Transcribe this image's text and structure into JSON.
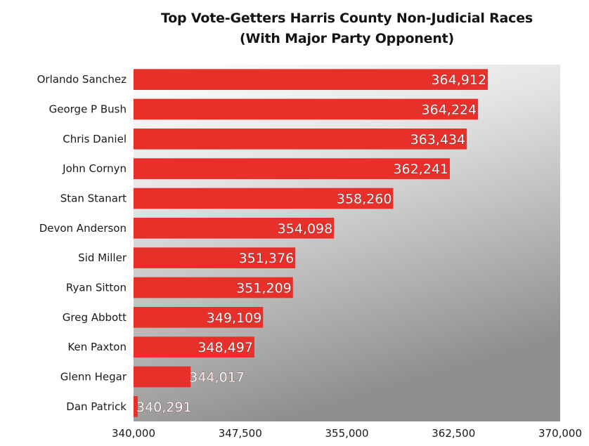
{
  "chart_data": {
    "type": "bar",
    "orientation": "horizontal",
    "title": "Top Vote-Getters Harris County Non-Judicial Races",
    "subtitle": "(With Major Party Opponent)",
    "xlabel": "",
    "ylabel": "",
    "xlim": [
      340000,
      370000
    ],
    "xticks": [
      340000,
      347500,
      355000,
      362500,
      370000
    ],
    "xtick_labels": [
      "340,000",
      "347,500",
      "355,000",
      "362,500",
      "370,000"
    ],
    "grid": false,
    "legend": "none",
    "categories": [
      "Orlando Sanchez",
      "George P Bush",
      "Chris Daniel",
      "John Cornyn",
      "Stan Stanart",
      "Devon Anderson",
      "Sid Miller",
      "Ryan Sitton",
      "Greg Abbott",
      "Ken Paxton",
      "Glenn Hegar",
      "Dan Patrick"
    ],
    "values": [
      364912,
      364224,
      363434,
      362241,
      358260,
      354098,
      351376,
      351209,
      349109,
      348497,
      344017,
      340291
    ],
    "value_labels": [
      "364,912",
      "364,224",
      "363,434",
      "362,241",
      "358,260",
      "354,098",
      "351,376",
      "351,209",
      "349,109",
      "348,497",
      "344,017",
      "340,291"
    ],
    "colors": {
      "bar": "#e8302b",
      "background_top": "#ffffff",
      "background_bottom": "#8e8e8e",
      "value_label": "#ffffff"
    }
  }
}
